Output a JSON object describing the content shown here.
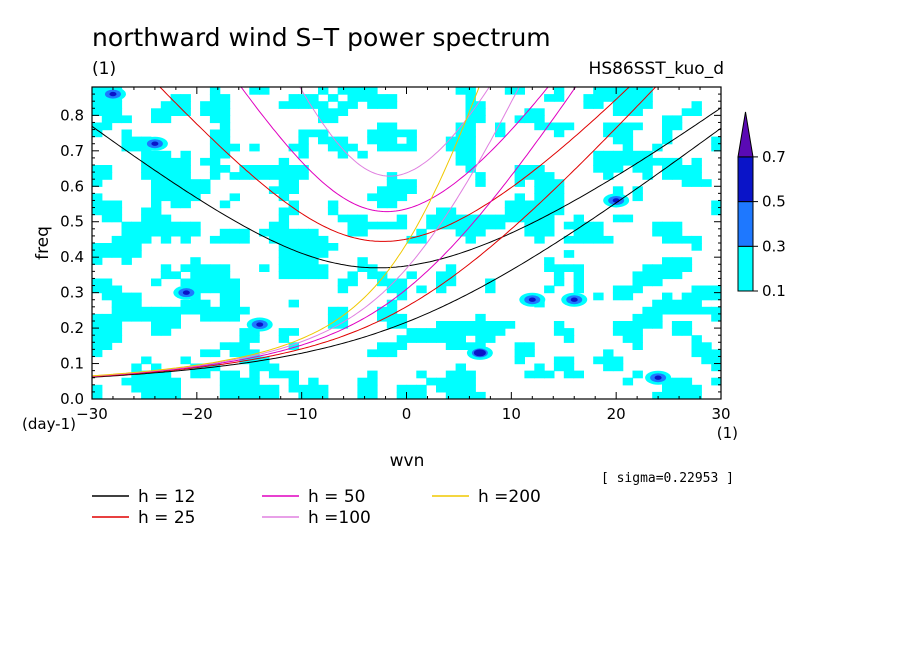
{
  "chart_data": {
    "type": "heatmap",
    "title": "northward wind S–T power spectrum",
    "title_units": "(1)",
    "run_name": "HS86SST_kuo_d",
    "xlabel": "wvn",
    "x_units": "(1)",
    "ylabel": "freq",
    "y_units": "(day-1)",
    "xlim": [
      -30,
      30
    ],
    "ylim": [
      0.0,
      0.88
    ],
    "x_ticks": [
      -30,
      -20,
      -10,
      0,
      10,
      20,
      30
    ],
    "x_tick_labels": [
      "−30",
      "−20",
      "−10",
      "0",
      "10",
      "20",
      "30"
    ],
    "y_ticks": [
      0.0,
      0.1,
      0.2,
      0.3,
      0.4,
      0.5,
      0.6,
      0.7,
      0.8
    ],
    "y_tick_labels": [
      "0.0",
      "0.1",
      "0.2",
      "0.3",
      "0.4",
      "0.5",
      "0.6",
      "0.7",
      "0.8"
    ],
    "sigma_text": "[ sigma=0.22953 ]",
    "colorbar": {
      "levels": [
        0.1,
        0.3,
        0.5,
        0.7
      ],
      "labels": [
        "0.1",
        "0.3",
        "0.5",
        "0.7"
      ],
      "colors": [
        "#00ffff",
        "#1e78ff",
        "#0a14c8",
        "#5a0ab4"
      ]
    },
    "contour_fill": {
      "colors": [
        "#00ffff",
        "#1e78ff",
        "#0a14c8"
      ],
      "notable_peaks": [
        {
          "wvn": 7,
          "freq": 0.13,
          "level": 0.7
        },
        {
          "wvn": -24,
          "freq": 0.72,
          "level": 0.5
        },
        {
          "wvn": -14,
          "freq": 0.21,
          "level": 0.5
        },
        {
          "wvn": -21,
          "freq": 0.3,
          "level": 0.5
        },
        {
          "wvn": 12,
          "freq": 0.28,
          "level": 0.5
        },
        {
          "wvn": 16,
          "freq": 0.28,
          "level": 0.5
        },
        {
          "wvn": -28,
          "freq": 0.86,
          "level": 0.5
        },
        {
          "wvn": 20,
          "freq": 0.56,
          "level": 0.5
        },
        {
          "wvn": 24,
          "freq": 0.06,
          "level": 0.5
        }
      ]
    },
    "dispersion_curves": [
      {
        "name": "h = 12",
        "h": 12,
        "color": "#000000",
        "branches": [
          "rossby_gravity",
          "ig_n1"
        ]
      },
      {
        "name": "h = 25",
        "h": 25,
        "color": "#e00000",
        "branches": [
          "rossby_gravity",
          "ig_n1"
        ]
      },
      {
        "name": "h = 50",
        "h": 50,
        "color": "#e000c0",
        "branches": [
          "rossby_gravity",
          "ig_n1"
        ]
      },
      {
        "name": "h =100",
        "h": 100,
        "color": "#e080e0",
        "branches": [
          "rossby_gravity",
          "ig_n1"
        ]
      },
      {
        "name": "h =200",
        "h": 200,
        "color": "#f0c800",
        "branches": [
          "rossby_gravity"
        ]
      }
    ],
    "legend": {
      "placement": "bottom",
      "entries": [
        {
          "label": "h = 12",
          "color": "#000000"
        },
        {
          "label": "h = 25",
          "color": "#e00000"
        },
        {
          "label": "h = 50",
          "color": "#e000c0"
        },
        {
          "label": "h =100",
          "color": "#e080e0"
        },
        {
          "label": "h =200",
          "color": "#f0c800"
        }
      ]
    }
  }
}
